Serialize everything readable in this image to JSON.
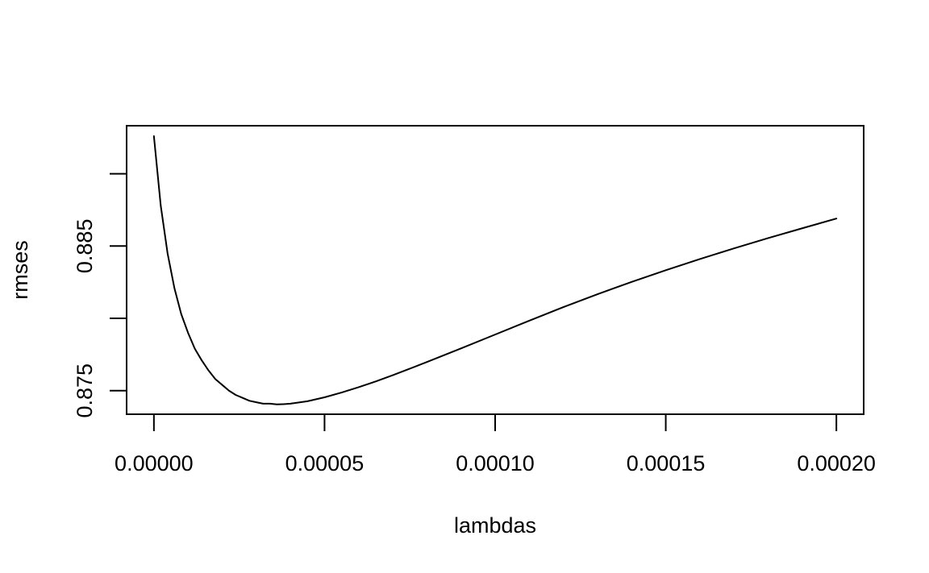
{
  "chart_data": {
    "type": "line",
    "title": "",
    "xlabel": "lambdas",
    "ylabel": "rmses",
    "xlim": [
      -8e-06,
      0.000208
    ],
    "ylim": [
      0.87337,
      0.89332
    ],
    "x_ticks": [
      0,
      5e-05,
      0.0001,
      0.00015,
      0.0002
    ],
    "x_tick_labels": [
      "0.00000",
      "0.00005",
      "0.00010",
      "0.00015",
      "0.00020"
    ],
    "y_ticks": [
      0.875,
      0.88,
      0.885,
      0.89
    ],
    "y_tick_labels": [
      "0.875",
      "",
      "0.885",
      ""
    ],
    "grid": false,
    "legend": "none",
    "color": "#000000",
    "series": [
      {
        "x": [
          0,
          2e-06,
          4e-06,
          6e-06,
          8e-06,
          1e-05,
          1.2e-05,
          1.4e-05,
          1.6e-05,
          1.8e-05,
          2e-05,
          2.2e-05,
          2.4e-05,
          2.6e-05,
          2.8e-05,
          3e-05,
          3.2e-05,
          3.4e-05,
          3.6e-05,
          3.8e-05,
          4e-05,
          4.5e-05,
          5e-05,
          5.5e-05,
          6e-05,
          6.5e-05,
          7e-05,
          7.5e-05,
          8e-05,
          9e-05,
          0.0001,
          0.00011,
          0.00012,
          0.00013,
          0.00014,
          0.00015,
          0.00016,
          0.00017,
          0.00018,
          0.00019,
          0.0002
        ],
        "y": [
          0.8926,
          0.8878,
          0.8845,
          0.8821,
          0.8803,
          0.879,
          0.8779,
          0.8771,
          0.8764,
          0.8758,
          0.8754,
          0.875,
          0.8747,
          0.8745,
          0.8743,
          0.8742,
          0.8741,
          0.8741,
          0.87405,
          0.87407,
          0.8741,
          0.87427,
          0.87454,
          0.87487,
          0.87524,
          0.87564,
          0.87607,
          0.87652,
          0.87698,
          0.87792,
          0.87888,
          0.87984,
          0.88078,
          0.88167,
          0.88252,
          0.88333,
          0.8841,
          0.88484,
          0.88555,
          0.88623,
          0.8869
        ]
      }
    ]
  }
}
